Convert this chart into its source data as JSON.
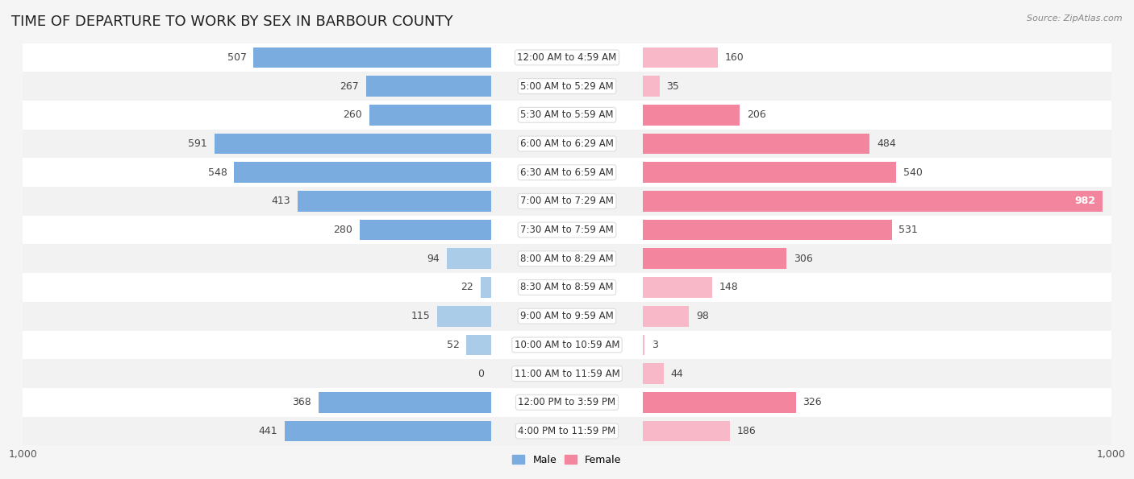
{
  "title": "TIME OF DEPARTURE TO WORK BY SEX IN BARBOUR COUNTY",
  "source": "Source: ZipAtlas.com",
  "categories": [
    "12:00 AM to 4:59 AM",
    "5:00 AM to 5:29 AM",
    "5:30 AM to 5:59 AM",
    "6:00 AM to 6:29 AM",
    "6:30 AM to 6:59 AM",
    "7:00 AM to 7:29 AM",
    "7:30 AM to 7:59 AM",
    "8:00 AM to 8:29 AM",
    "8:30 AM to 8:59 AM",
    "9:00 AM to 9:59 AM",
    "10:00 AM to 10:59 AM",
    "11:00 AM to 11:59 AM",
    "12:00 PM to 3:59 PM",
    "4:00 PM to 11:59 PM"
  ],
  "male_values": [
    507,
    267,
    260,
    591,
    548,
    413,
    280,
    94,
    22,
    115,
    52,
    0,
    368,
    441
  ],
  "female_values": [
    160,
    35,
    206,
    484,
    540,
    982,
    531,
    306,
    148,
    98,
    3,
    44,
    326,
    186
  ],
  "male_color": "#7aace0",
  "male_color_light": "#aacce8",
  "female_color": "#f4859e",
  "female_color_light": "#f9b8c8",
  "male_label": "Male",
  "female_label": "Female",
  "xlim": 1000,
  "row_color_odd": "#f2f2f2",
  "row_color_even": "#ffffff",
  "title_fontsize": 13,
  "source_fontsize": 8,
  "axis_fontsize": 9,
  "label_fontsize": 9,
  "cat_fontsize": 8.5
}
